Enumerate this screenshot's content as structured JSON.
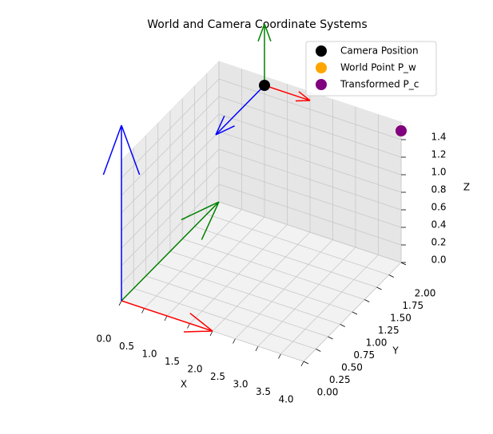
{
  "chart_data": {
    "type": "scatter3d",
    "title": "World and Camera Coordinate Systems",
    "xlabel": "X",
    "ylabel": "Y",
    "zlabel": "Z",
    "xlim": [
      0,
      4
    ],
    "ylim": [
      0,
      2
    ],
    "zlim": [
      0,
      1.6
    ],
    "xticks": [
      {
        "value": 0,
        "label": "0.0"
      },
      0.5,
      {
        "value": 1,
        "label": "1.0"
      },
      1.5,
      {
        "value": 2,
        "label": "2.0"
      },
      2.5,
      {
        "value": 3,
        "label": "3.0"
      },
      3.5,
      {
        "value": 4,
        "label": "4.0"
      }
    ],
    "yticks": [
      {
        "value": 0,
        "label": "0.00"
      },
      0.25,
      {
        "value": 0.5,
        "label": "0.50"
      },
      0.75,
      {
        "value": 1,
        "label": "1.00"
      },
      1.25,
      {
        "value": 1.5,
        "label": "1.50"
      },
      1.75,
      {
        "value": 2,
        "label": "2.00"
      }
    ],
    "zticks": [
      {
        "value": 0,
        "label": "0.0"
      },
      0.2,
      0.4,
      0.6,
      0.8,
      {
        "value": 1,
        "label": "1.0"
      },
      1.2,
      1.4
    ],
    "grid": true,
    "legend": "upper right",
    "points": [
      {
        "name": "Camera Position",
        "color": "black",
        "x": 1,
        "y": 2,
        "z": 1.5
      },
      {
        "name": "World Point P_w",
        "color": "orange",
        "x": 4,
        "y": 2,
        "z": 1.5
      },
      {
        "name": "Transformed P_c",
        "color": "purple",
        "x": 4,
        "y": 2,
        "z": 1.5
      }
    ],
    "arrows": [
      {
        "color": "red",
        "origin": [
          0,
          0,
          0
        ],
        "vector": [
          2,
          0,
          0
        ]
      },
      {
        "color": "green",
        "origin": [
          0,
          0,
          0
        ],
        "vector": [
          0,
          2,
          0
        ]
      },
      {
        "color": "blue",
        "origin": [
          0,
          0,
          0
        ],
        "vector": [
          0,
          0,
          2
        ]
      },
      {
        "color": "red",
        "origin": [
          1,
          2,
          1.5
        ],
        "vector": [
          1,
          0,
          0
        ]
      },
      {
        "color": "green",
        "origin": [
          1,
          2,
          1.5
        ],
        "vector": [
          0,
          0,
          0.7
        ]
      },
      {
        "color": "blue",
        "origin": [
          1,
          2,
          1.5
        ],
        "vector": [
          0,
          -1,
          0
        ]
      }
    ]
  }
}
